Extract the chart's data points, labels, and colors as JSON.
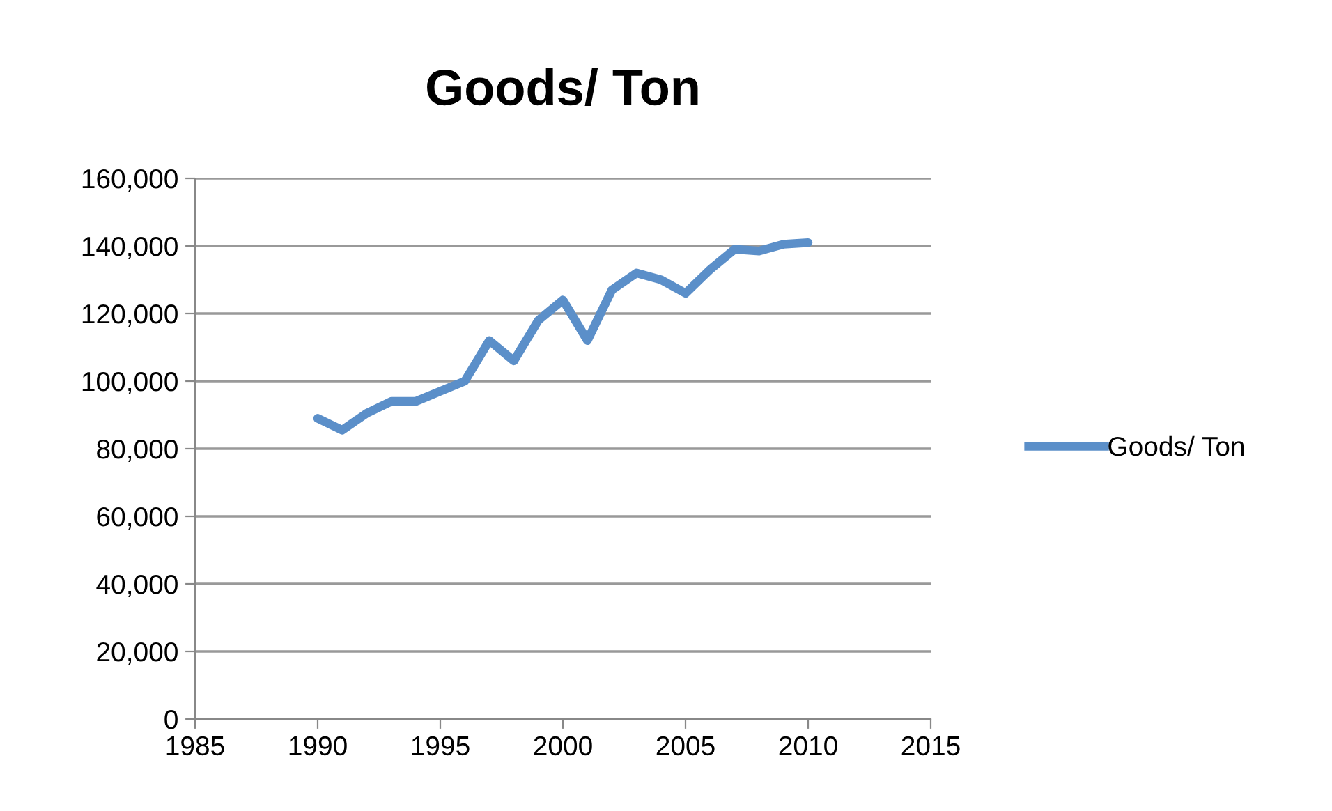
{
  "chart_data": {
    "type": "line",
    "title": "Goods/ Ton",
    "x": [
      1990,
      1991,
      1992,
      1993,
      1994,
      1995,
      1996,
      1997,
      1998,
      1999,
      2000,
      2001,
      2002,
      2003,
      2004,
      2005,
      2006,
      2007,
      2008,
      2009,
      2010
    ],
    "series": [
      {
        "name": "Goods/ Ton",
        "color": "#5b8fc9",
        "values": [
          89000,
          85500,
          90500,
          94000,
          94000,
          97000,
          100000,
          112000,
          106000,
          118000,
          124000,
          112000,
          127000,
          132000,
          130000,
          126000,
          133000,
          139000,
          138500,
          140500,
          141000
        ]
      }
    ],
    "xlim": [
      1985,
      2015
    ],
    "xticks": [
      1985,
      1990,
      1995,
      2000,
      2005,
      2010,
      2015
    ],
    "ylim": [
      0,
      160000
    ],
    "yticks": [
      {
        "value": 0,
        "label": "0"
      },
      {
        "value": 20000,
        "label": "20,000"
      },
      {
        "value": 40000,
        "label": "40,000"
      },
      {
        "value": 60000,
        "label": "60,000"
      },
      {
        "value": 80000,
        "label": "80,000"
      },
      {
        "value": 100000,
        "label": "100,000"
      },
      {
        "value": 120000,
        "label": "120,000"
      },
      {
        "value": 140000,
        "label": "140,000"
      },
      {
        "value": 160000,
        "label": "160,000"
      }
    ],
    "grid": "y",
    "legend": "right",
    "marker": "none",
    "line_style": "solid"
  }
}
